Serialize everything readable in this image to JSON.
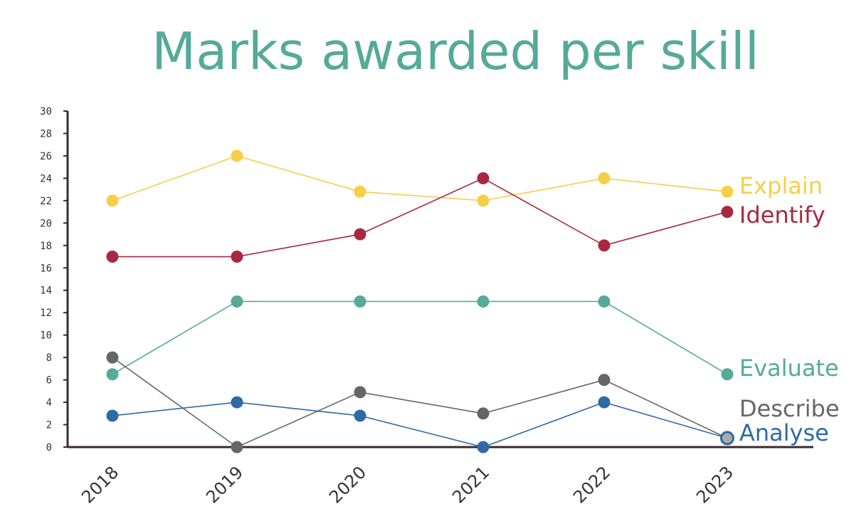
{
  "chart_data": {
    "type": "line",
    "title": "Marks awarded per skill",
    "xlabel": "",
    "ylabel": "",
    "categories": [
      "2018",
      "2019",
      "2020",
      "2021",
      "2022",
      "2023"
    ],
    "ylim": [
      0,
      30
    ],
    "yticks": [
      0,
      2,
      4,
      6,
      8,
      10,
      12,
      14,
      16,
      18,
      20,
      22,
      24,
      26,
      28,
      30
    ],
    "grid": false,
    "legend": "direct labels at right end of lines",
    "series": [
      {
        "name": "Explain",
        "color": "#f5cf47",
        "values": [
          22,
          26,
          22.8,
          22,
          24,
          22.8
        ]
      },
      {
        "name": "Identify",
        "color": "#a8283f",
        "values": [
          17,
          17,
          19,
          24,
          18,
          21
        ]
      },
      {
        "name": "Evaluate",
        "color": "#55aa98",
        "values": [
          6.5,
          13,
          13,
          13,
          13,
          6.5
        ]
      },
      {
        "name": "Describe",
        "color": "#666666",
        "values": [
          8,
          0,
          4.9,
          3,
          6,
          0.8
        ]
      },
      {
        "name": "Analyse",
        "color": "#2e6aa6",
        "values": [
          2.8,
          4,
          2.8,
          0,
          4,
          0.8
        ]
      }
    ]
  }
}
